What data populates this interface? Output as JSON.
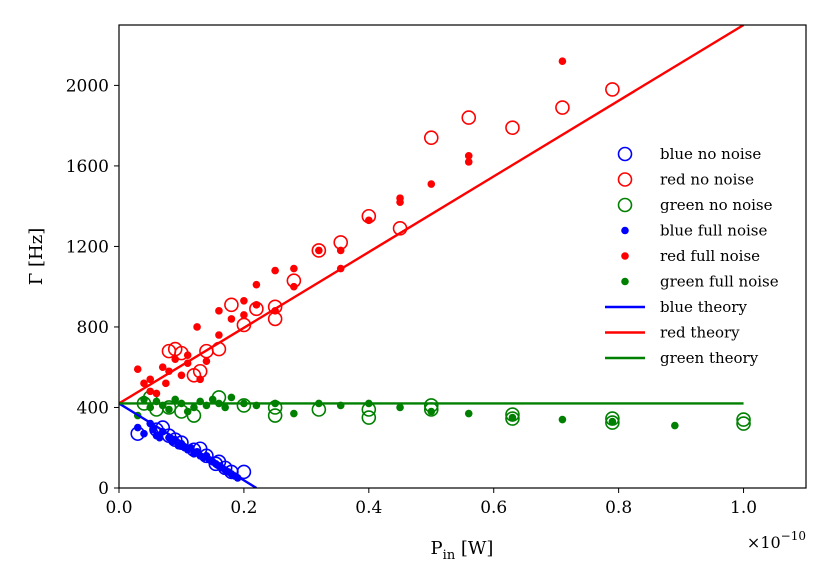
{
  "colors": {
    "blue": "#0000ff",
    "red": "#ff0000",
    "green": "#008000",
    "axis": "#000000",
    "background": "#ffffff"
  },
  "chart_data": {
    "type": "scatter",
    "title": "",
    "xlabel": "P",
    "xlabel_sub": "in",
    "xlabel_unit": "[W]",
    "ylabel": "Γ [Hz]",
    "x_scale_label": "×10",
    "x_scale_exponent": "−10",
    "x_ticks": [
      0.0,
      0.2,
      0.4,
      0.6,
      0.8,
      1.0
    ],
    "x_tick_labels": [
      "0.0",
      "0.2",
      "0.4",
      "0.6",
      "0.8",
      "1.0"
    ],
    "y_ticks": [
      0,
      400,
      800,
      1200,
      1600,
      2000
    ],
    "y_tick_labels": [
      "0",
      "400",
      "800",
      "1200",
      "1600",
      "2000"
    ],
    "xlim": [
      0.0,
      1.1
    ],
    "ylim": [
      0,
      2300
    ],
    "grid": false,
    "legend_position": "right",
    "series": [
      {
        "name": "blue no noise",
        "marker": "open-circle",
        "color": "blue",
        "x": [
          0.03,
          0.06,
          0.07,
          0.08,
          0.09,
          0.1,
          0.12,
          0.13,
          0.14,
          0.155,
          0.16,
          0.17,
          0.18,
          0.2
        ],
        "y": [
          270,
          290,
          300,
          260,
          240,
          225,
          190,
          195,
          160,
          120,
          130,
          100,
          80,
          80
        ]
      },
      {
        "name": "red no noise",
        "marker": "open-circle",
        "color": "red",
        "x": [
          0.08,
          0.09,
          0.1,
          0.12,
          0.13,
          0.14,
          0.16,
          0.18,
          0.2,
          0.22,
          0.25,
          0.25,
          0.28,
          0.32,
          0.355,
          0.4,
          0.45,
          0.5,
          0.56,
          0.63,
          0.71,
          0.79
        ],
        "y": [
          680,
          690,
          670,
          560,
          580,
          680,
          690,
          910,
          810,
          890,
          900,
          840,
          1030,
          1180,
          1220,
          1350,
          1290,
          1740,
          1840,
          1790,
          1890,
          1980
        ]
      },
      {
        "name": "green no noise",
        "marker": "open-circle",
        "color": "green",
        "x": [
          0.04,
          0.05,
          0.06,
          0.08,
          0.1,
          0.12,
          0.16,
          0.2,
          0.25,
          0.25,
          0.32,
          0.4,
          0.4,
          0.5,
          0.5,
          0.63,
          0.63,
          0.79,
          0.79,
          1.0,
          1.0
        ],
        "y": [
          420,
          450,
          390,
          400,
          380,
          360,
          450,
          410,
          360,
          400,
          390,
          350,
          390,
          390,
          410,
          345,
          365,
          325,
          345,
          320,
          340
        ]
      },
      {
        "name": "blue full noise",
        "marker": "dot",
        "color": "blue",
        "x": [
          0.03,
          0.04,
          0.05,
          0.055,
          0.06,
          0.065,
          0.07,
          0.08,
          0.085,
          0.09,
          0.095,
          0.1,
          0.105,
          0.11,
          0.115,
          0.12,
          0.125,
          0.13,
          0.135,
          0.14,
          0.145,
          0.15,
          0.155,
          0.16,
          0.165,
          0.17,
          0.175,
          0.18,
          0.185,
          0.19
        ],
        "y": [
          300,
          270,
          320,
          290,
          260,
          250,
          280,
          250,
          230,
          240,
          210,
          220,
          200,
          190,
          200,
          170,
          180,
          160,
          150,
          160,
          140,
          130,
          120,
          110,
          100,
          90,
          80,
          70,
          60,
          50
        ]
      },
      {
        "name": "red full noise",
        "marker": "dot",
        "color": "red",
        "x": [
          0.03,
          0.04,
          0.05,
          0.05,
          0.06,
          0.07,
          0.075,
          0.08,
          0.09,
          0.1,
          0.11,
          0.11,
          0.125,
          0.13,
          0.14,
          0.16,
          0.16,
          0.18,
          0.2,
          0.2,
          0.22,
          0.22,
          0.25,
          0.25,
          0.28,
          0.28,
          0.32,
          0.355,
          0.355,
          0.4,
          0.45,
          0.45,
          0.5,
          0.56,
          0.56,
          0.71
        ],
        "y": [
          590,
          520,
          480,
          540,
          470,
          600,
          520,
          580,
          640,
          560,
          620,
          660,
          800,
          540,
          630,
          880,
          760,
          840,
          930,
          860,
          1010,
          910,
          1080,
          880,
          1090,
          1000,
          1180,
          1180,
          1090,
          1330,
          1440,
          1420,
          1510,
          1650,
          1620,
          2120
        ]
      },
      {
        "name": "green full noise",
        "marker": "dot",
        "color": "green",
        "x": [
          0.03,
          0.04,
          0.05,
          0.06,
          0.07,
          0.08,
          0.09,
          0.1,
          0.11,
          0.12,
          0.13,
          0.14,
          0.15,
          0.16,
          0.17,
          0.18,
          0.2,
          0.22,
          0.25,
          0.28,
          0.32,
          0.355,
          0.4,
          0.45,
          0.5,
          0.56,
          0.63,
          0.71,
          0.79,
          0.89
        ],
        "y": [
          360,
          440,
          400,
          430,
          410,
          390,
          440,
          420,
          380,
          400,
          430,
          410,
          440,
          420,
          400,
          450,
          420,
          410,
          420,
          370,
          420,
          410,
          420,
          400,
          380,
          370,
          350,
          340,
          330,
          310
        ]
      },
      {
        "name": "blue theory",
        "marker": "line",
        "color": "blue",
        "x": [
          0.0,
          0.22
        ],
        "y": [
          420,
          0
        ]
      },
      {
        "name": "red theory",
        "marker": "line",
        "color": "red",
        "x": [
          0.0,
          1.0
        ],
        "y": [
          420,
          2300
        ]
      },
      {
        "name": "green theory",
        "marker": "line",
        "color": "green",
        "x": [
          0.0,
          1.0
        ],
        "y": [
          420,
          420
        ]
      }
    ]
  }
}
